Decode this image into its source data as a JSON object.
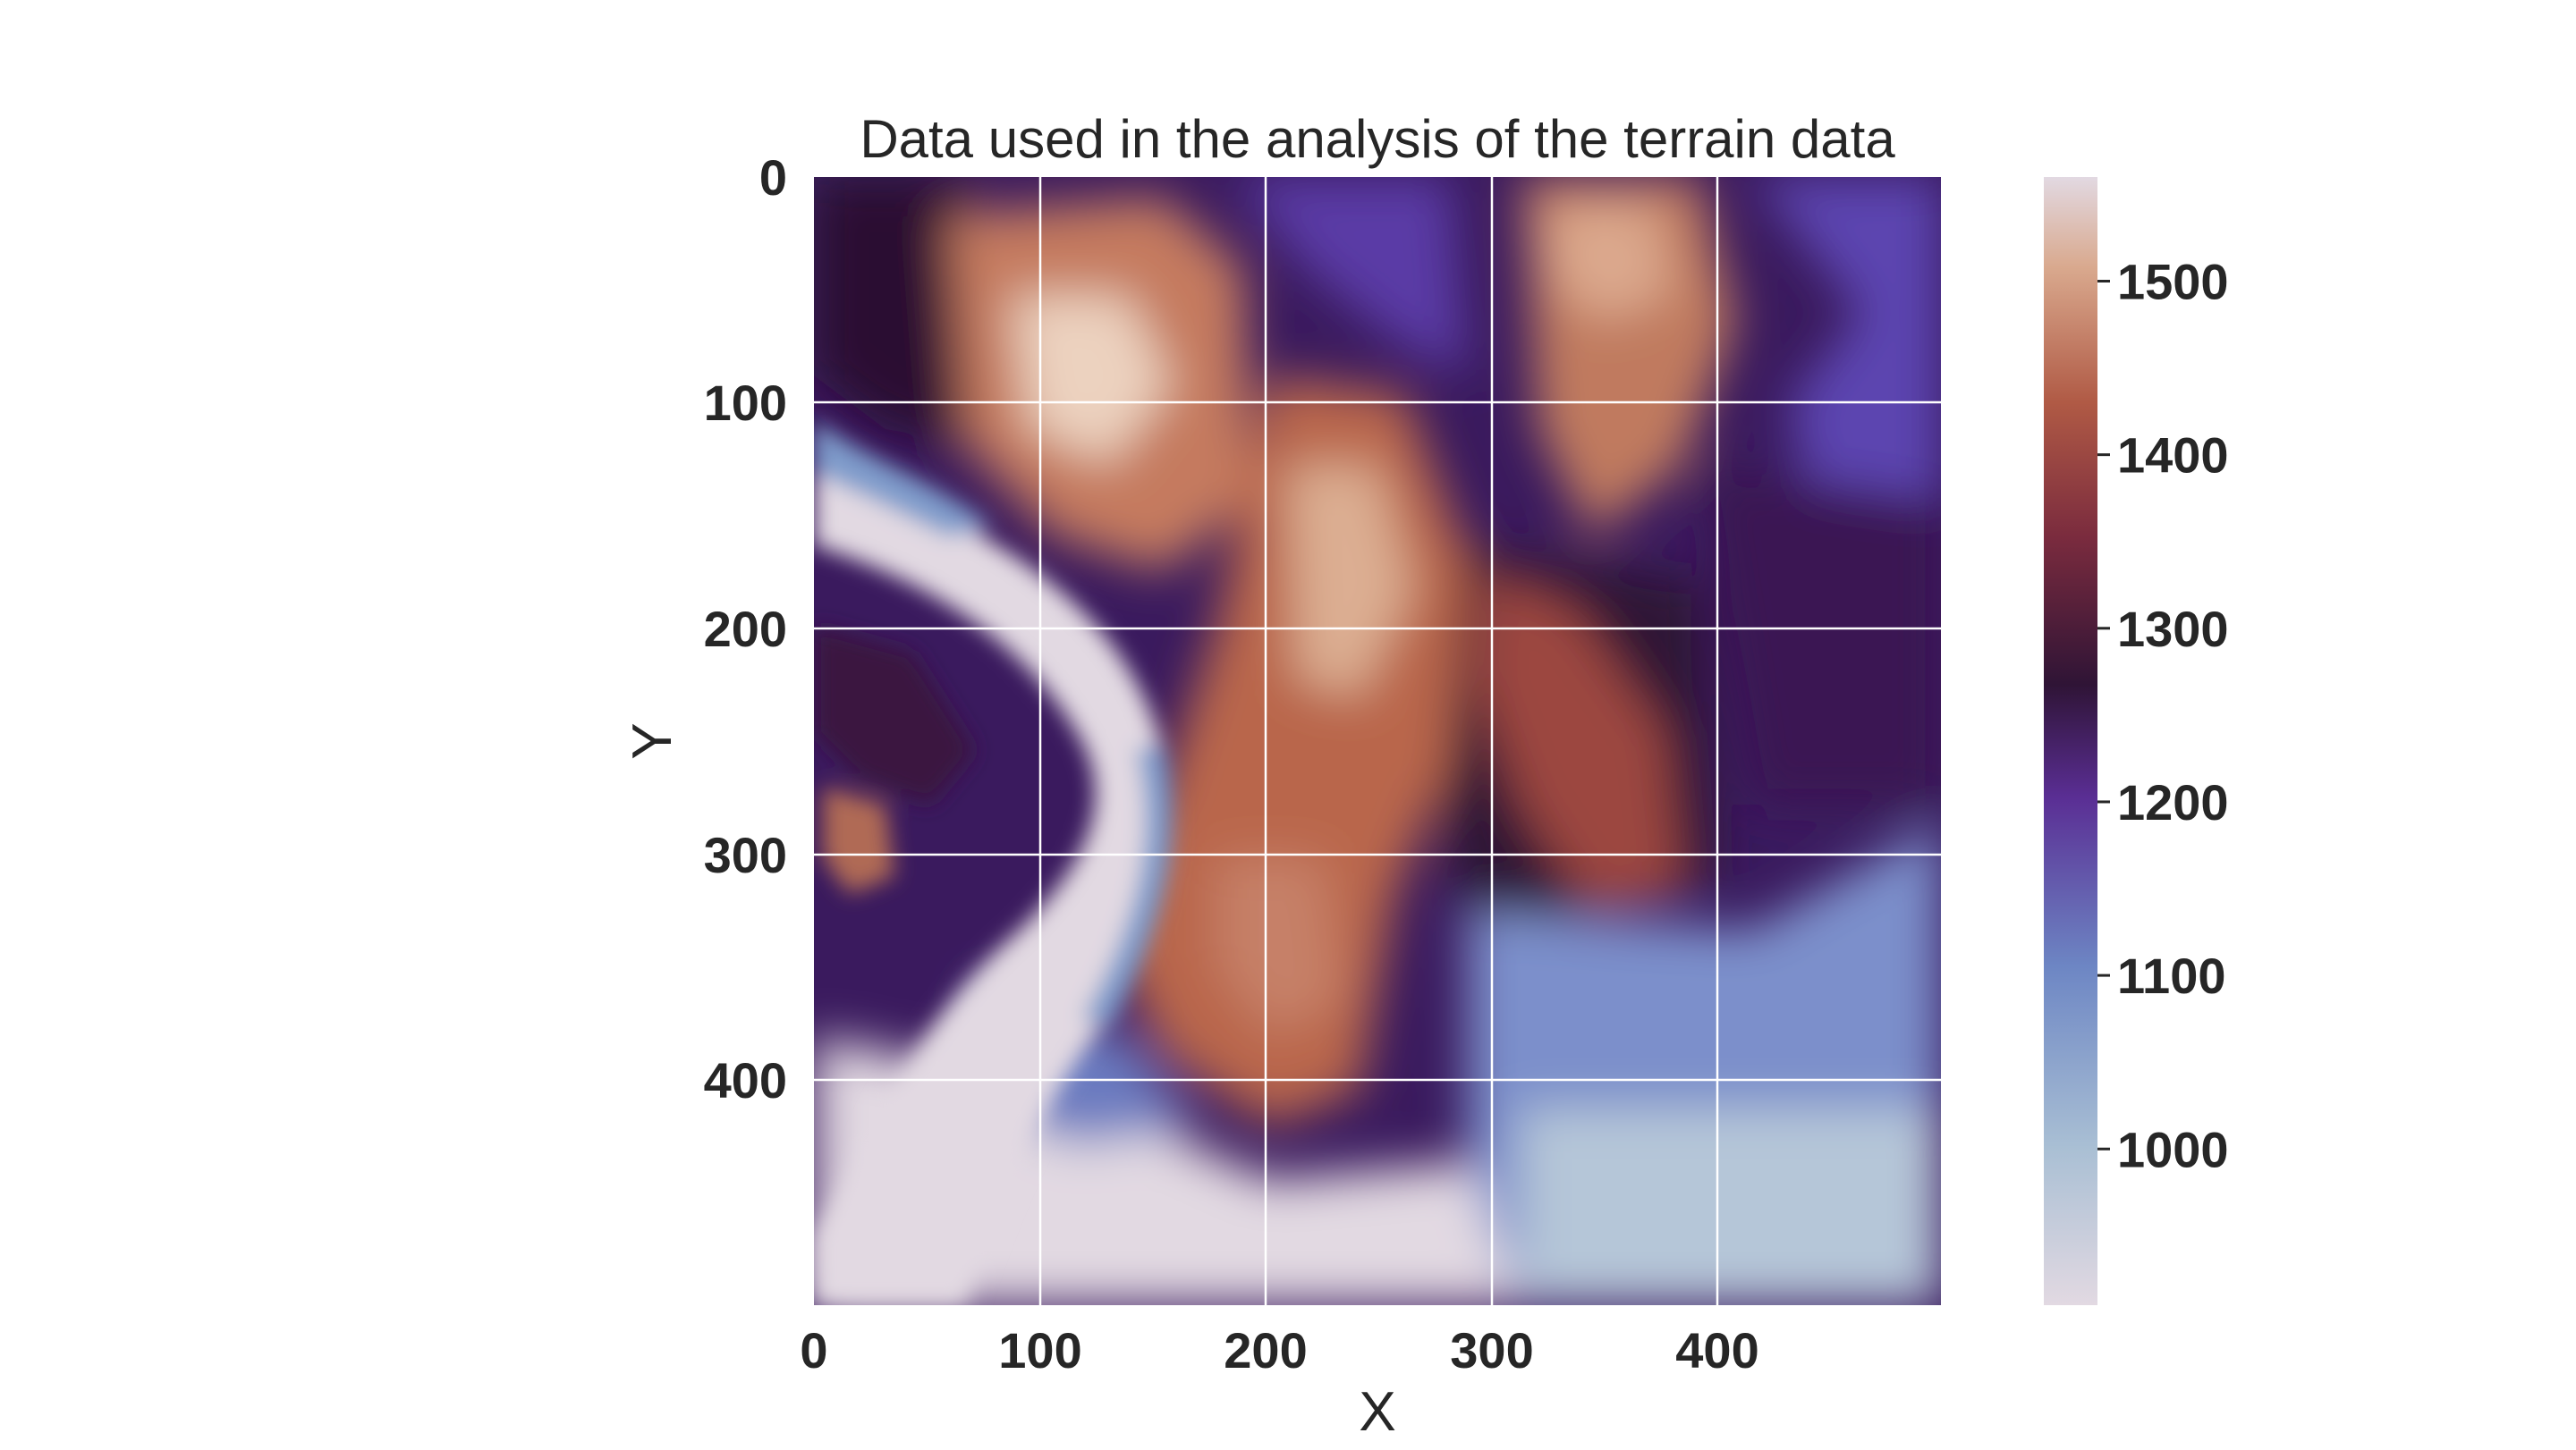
{
  "chart_data": {
    "type": "heatmap",
    "title": "Data used in the analysis of the terrain data",
    "xlabel": "X",
    "ylabel": "Y",
    "xlim": [
      0,
      500
    ],
    "ylim": [
      500,
      0
    ],
    "xticks": [
      0,
      100,
      200,
      300,
      400
    ],
    "yticks": [
      0,
      100,
      200,
      300,
      400
    ],
    "grid": true,
    "colormap": "twilight",
    "colorbar": {
      "range": [
        910,
        1560
      ],
      "ticks": [
        1000,
        1100,
        1200,
        1300,
        1400,
        1500
      ],
      "colors": [
        "#e2d9e2",
        "#6f95c3",
        "#5b3a99",
        "#2f1436",
        "#a74a3c",
        "#d5a48a",
        "#e2d9e2"
      ]
    },
    "features": {
      "river_low_channel": 910,
      "central_ridge_peak": 1560,
      "plateau_east": 1180,
      "southeast_lowland": 1000
    }
  }
}
